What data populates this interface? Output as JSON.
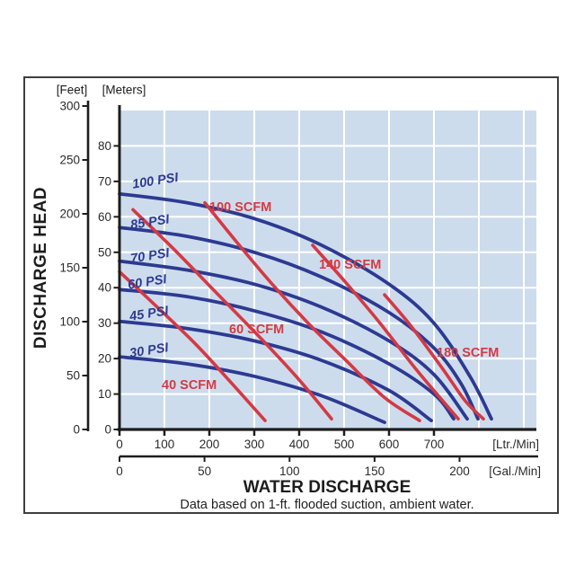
{
  "header": {
    "feet_unit": "[Feet]",
    "meters_unit": "[Meters]"
  },
  "y_axis_title": "DISCHARGE HEAD",
  "x_axis_title": "WATER DISCHARGE",
  "footnote": "Data based on 1-ft. flooded suction, ambient water.",
  "colors": {
    "plot_bg": "#cddcec",
    "grid": "#ffffff",
    "blue": "#2d3a92",
    "red": "#d43a44",
    "axis": "#1d1d1d",
    "tick_text": "#2b2b2b"
  },
  "chart_data": {
    "type": "line",
    "title": "WATER DISCHARGE",
    "xlabel": "WATER DISCHARGE",
    "ylabel": "DISCHARGE HEAD",
    "x_axis_primary": {
      "unit": "[Ltr./Min]",
      "ticks": [
        0,
        100,
        200,
        300,
        400,
        500,
        600,
        700
      ],
      "range": [
        0,
        928
      ]
    },
    "x_axis_secondary": {
      "unit": "[Gal./Min]",
      "ticks": [
        0,
        50,
        100,
        150,
        200
      ],
      "liters_per_gallon": 3.785
    },
    "y_axis_feet": {
      "unit": "[Feet]",
      "ticks": [
        300,
        250,
        200,
        150,
        100,
        50,
        0
      ]
    },
    "y_axis_meters": {
      "unit": "[Meters]",
      "ticks": [
        80,
        70,
        60,
        50,
        40,
        30,
        20,
        10,
        0
      ],
      "range": [
        0,
        90
      ]
    },
    "grid": {
      "x_step_ltr": 100,
      "y_step_m": 10
    },
    "series": [
      {
        "label": "100 PSI",
        "color": "blue",
        "italic": true,
        "label_rot": -9,
        "label_at": [
          30,
          68
        ],
        "points": [
          [
            0,
            66.5
          ],
          [
            150,
            64
          ],
          [
            300,
            59.5
          ],
          [
            450,
            52
          ],
          [
            600,
            41
          ],
          [
            700,
            30
          ],
          [
            780,
            15
          ],
          [
            828,
            3
          ]
        ]
      },
      {
        "label": "85 PSI",
        "color": "blue",
        "italic": true,
        "label_rot": -9,
        "label_at": [
          26,
          56.5
        ],
        "points": [
          [
            0,
            57
          ],
          [
            150,
            54.5
          ],
          [
            300,
            50
          ],
          [
            450,
            43
          ],
          [
            600,
            33
          ],
          [
            700,
            23
          ],
          [
            760,
            13
          ],
          [
            798,
            3
          ]
        ]
      },
      {
        "label": "70 PSI",
        "color": "blue",
        "italic": true,
        "label_rot": -9,
        "label_at": [
          26,
          47
        ],
        "points": [
          [
            0,
            47.5
          ],
          [
            150,
            45
          ],
          [
            300,
            41
          ],
          [
            450,
            34.5
          ],
          [
            600,
            25
          ],
          [
            700,
            15.5
          ],
          [
            774,
            3
          ]
        ]
      },
      {
        "label": "60 PSI",
        "color": "blue",
        "italic": true,
        "label_rot": -9,
        "label_at": [
          20,
          39.6
        ],
        "points": [
          [
            0,
            39.5
          ],
          [
            150,
            37.5
          ],
          [
            300,
            33.5
          ],
          [
            450,
            27.5
          ],
          [
            600,
            18.5
          ],
          [
            700,
            10
          ],
          [
            744,
            3
          ]
        ]
      },
      {
        "label": "45 PSI",
        "color": "blue",
        "italic": true,
        "label_rot": -9,
        "label_at": [
          24,
          30.7
        ],
        "points": [
          [
            0,
            30.5
          ],
          [
            150,
            28.5
          ],
          [
            300,
            25
          ],
          [
            450,
            19.5
          ],
          [
            600,
            11
          ],
          [
            694,
            2.5
          ]
        ]
      },
      {
        "label": "30 PSI",
        "color": "blue",
        "italic": true,
        "label_rot": -9,
        "label_at": [
          24,
          20.3
        ],
        "points": [
          [
            0,
            20.5
          ],
          [
            150,
            18.5
          ],
          [
            300,
            15
          ],
          [
            450,
            9.5
          ],
          [
            590,
            2
          ]
        ]
      },
      {
        "label": "40 SCFM",
        "color": "red",
        "italic": false,
        "label_rot": 0,
        "label_at": [
          94,
          11.4
        ],
        "points": [
          [
            0,
            44.5
          ],
          [
            80,
            35
          ],
          [
            170,
            24
          ],
          [
            250,
            13
          ],
          [
            324,
            2.5
          ]
        ]
      },
      {
        "label": "60 SCFM",
        "color": "red",
        "italic": false,
        "label_rot": 0,
        "label_at": [
          244,
          27.1
        ],
        "points": [
          [
            30,
            62
          ],
          [
            120,
            51
          ],
          [
            220,
            38
          ],
          [
            320,
            25
          ],
          [
            400,
            14
          ],
          [
            472,
            3
          ]
        ]
      },
      {
        "label": "100 SCFM",
        "color": "red",
        "italic": false,
        "label_rot": 0,
        "label_at": [
          200,
          61.6
        ],
        "points": [
          [
            190,
            64
          ],
          [
            260,
            53
          ],
          [
            340,
            41
          ],
          [
            420,
            30
          ],
          [
            500,
            20
          ],
          [
            590,
            9
          ],
          [
            668,
            2.5
          ]
        ]
      },
      {
        "label": "140 SCFM",
        "color": "red",
        "italic": false,
        "label_rot": 0,
        "label_at": [
          444,
          45.4
        ],
        "points": [
          [
            430,
            52
          ],
          [
            500,
            42
          ],
          [
            580,
            30
          ],
          [
            660,
            17
          ],
          [
            720,
            8
          ],
          [
            754,
            3
          ]
        ]
      },
      {
        "label": "180 SCFM",
        "color": "red",
        "italic": false,
        "label_rot": 0,
        "label_at": [
          706,
          20.5
        ],
        "points": [
          [
            590,
            38
          ],
          [
            650,
            29
          ],
          [
            720,
            17
          ],
          [
            770,
            8
          ],
          [
            810,
            3
          ]
        ]
      }
    ]
  }
}
